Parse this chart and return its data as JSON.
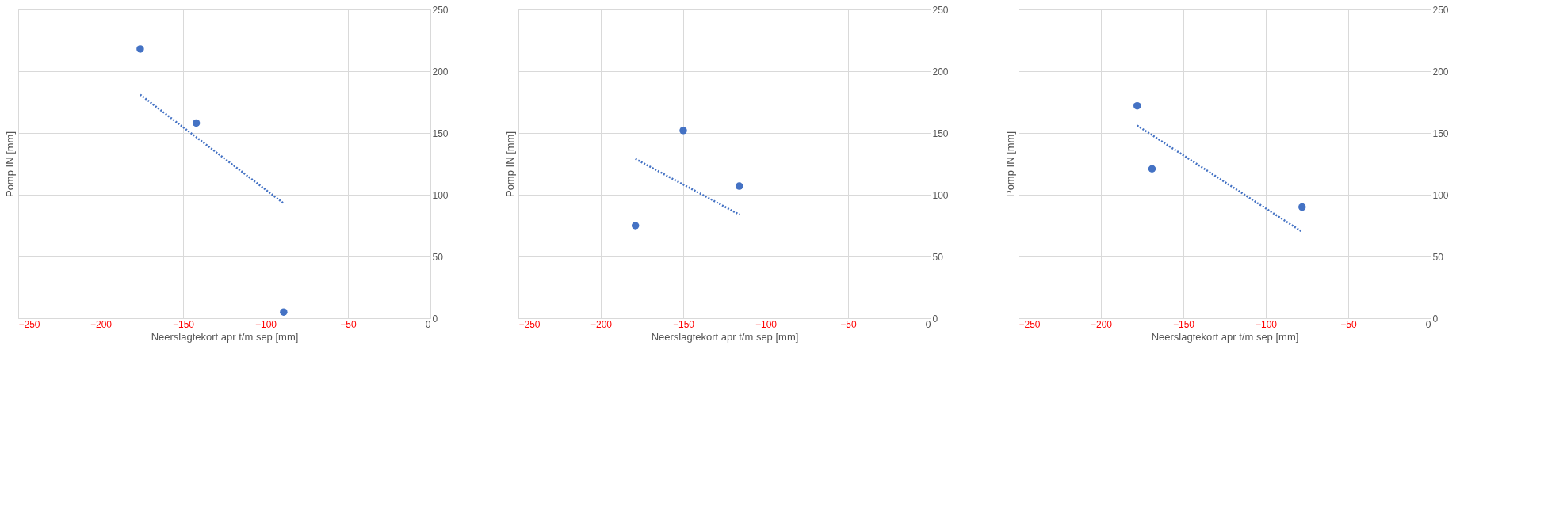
{
  "chart_data": [
    {
      "type": "scatter",
      "xlabel": "Neerslagtekort apr t/m sep [mm]",
      "ylabel": "Pomp IN [mm]",
      "xlim": [
        -250,
        0
      ],
      "xticks": [
        -250,
        -200,
        -150,
        -100,
        -50,
        0
      ],
      "ylim": [
        0,
        250
      ],
      "yticks": [
        0,
        50,
        100,
        150,
        200,
        250
      ],
      "grid": true,
      "series": [
        {
          "color": "#4472c4",
          "marker": "circle",
          "x": [
            -176,
            -142,
            -89
          ],
          "values": [
            218,
            158,
            5
          ]
        },
        {
          "type": "line",
          "color": "#4472c4",
          "line_style": "dotted",
          "x": [
            -176,
            -89
          ],
          "values": [
            181,
            93
          ]
        }
      ]
    },
    {
      "type": "scatter",
      "xlabel": "Neerslagtekort apr t/m sep [mm]",
      "ylabel": "Pomp IN [mm]",
      "xlim": [
        -250,
        0
      ],
      "xticks": [
        -250,
        -200,
        -150,
        -100,
        -50,
        0
      ],
      "ylim": [
        0,
        250
      ],
      "yticks": [
        0,
        50,
        100,
        150,
        200,
        250
      ],
      "grid": true,
      "series": [
        {
          "color": "#4472c4",
          "marker": "circle",
          "x": [
            -179,
            -150,
            -116
          ],
          "values": [
            75,
            152,
            107
          ]
        },
        {
          "type": "line",
          "color": "#4472c4",
          "line_style": "dotted",
          "x": [
            -179,
            -116
          ],
          "values": [
            129,
            84
          ]
        }
      ]
    },
    {
      "type": "scatter",
      "xlabel": "Neerslagtekort apr t/m sep [mm]",
      "ylabel": "Pomp IN [mm]",
      "xlim": [
        -250,
        0
      ],
      "xticks": [
        -250,
        -200,
        -150,
        -100,
        -50,
        0
      ],
      "ylim": [
        0,
        250
      ],
      "yticks": [
        0,
        50,
        100,
        150,
        200,
        250
      ],
      "grid": true,
      "series": [
        {
          "color": "#4472c4",
          "marker": "circle",
          "x": [
            -178,
            -169,
            -78
          ],
          "values": [
            172,
            121,
            90
          ]
        },
        {
          "type": "line",
          "color": "#4472c4",
          "line_style": "dotted",
          "x": [
            -178,
            -78
          ],
          "values": [
            156,
            70
          ]
        }
      ]
    }
  ]
}
